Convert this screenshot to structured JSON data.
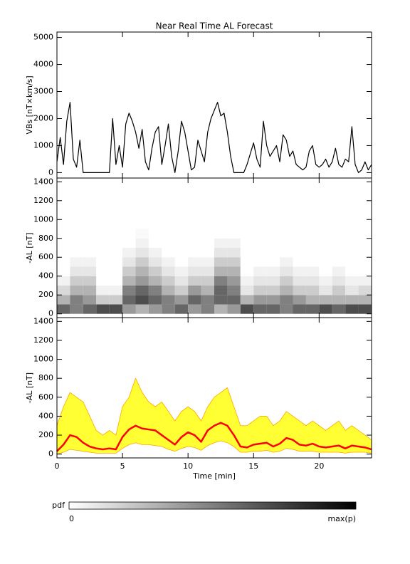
{
  "chart_data": [
    {
      "type": "line",
      "title": "Near Real Time AL Forecast",
      "ylabel": "VBs [nT×km/s]",
      "xlim": [
        0,
        24
      ],
      "xticks": [
        0,
        5,
        10,
        15,
        20
      ],
      "xtick_labels": false,
      "ylim": [
        -200,
        5200
      ],
      "yticks": [
        0,
        1000,
        2000,
        3000,
        4000,
        5000
      ],
      "x": [
        0,
        0.25,
        0.5,
        0.75,
        1,
        1.25,
        1.5,
        1.75,
        2,
        2.25,
        2.5,
        2.75,
        3,
        3.25,
        3.5,
        3.75,
        4,
        4.25,
        4.5,
        4.75,
        5,
        5.25,
        5.5,
        5.75,
        6,
        6.25,
        6.5,
        6.75,
        7,
        7.25,
        7.5,
        7.75,
        8,
        8.25,
        8.5,
        8.75,
        9,
        9.25,
        9.5,
        9.75,
        10,
        10.25,
        10.5,
        10.75,
        11,
        11.25,
        11.5,
        11.75,
        12,
        12.25,
        12.5,
        12.75,
        13,
        13.25,
        13.5,
        13.75,
        14,
        14.25,
        14.5,
        14.75,
        15,
        15.25,
        15.5,
        15.75,
        16,
        16.25,
        16.5,
        16.75,
        17,
        17.25,
        17.5,
        17.75,
        18,
        18.25,
        18.5,
        18.75,
        19,
        19.25,
        19.5,
        19.75,
        20,
        20.25,
        20.5,
        20.75,
        21,
        21.25,
        21.5,
        21.75,
        22,
        22.25,
        22.5,
        22.75,
        23,
        23.25,
        23.5,
        23.75,
        24
      ],
      "series": [
        {
          "color": "#000000",
          "values": [
            400,
            1300,
            300,
            1900,
            2600,
            500,
            200,
            1200,
            0,
            0,
            0,
            0,
            0,
            0,
            0,
            0,
            0,
            2000,
            300,
            1000,
            200,
            1800,
            2200,
            1900,
            1500,
            900,
            1600,
            400,
            100,
            900,
            1500,
            1700,
            300,
            1000,
            1800,
            600,
            0,
            800,
            1900,
            1500,
            800,
            100,
            200,
            1200,
            800,
            400,
            1500,
            2000,
            2300,
            2600,
            2100,
            2200,
            1500,
            600,
            0,
            0,
            0,
            0,
            300,
            700,
            1100,
            500,
            200,
            1900,
            1000,
            600,
            800,
            1000,
            400,
            1400,
            1200,
            600,
            800,
            300,
            200,
            100,
            200,
            800,
            1000,
            300,
            200,
            300,
            500,
            200,
            400,
            900,
            300,
            200,
            500,
            400,
            1700,
            300,
            0,
            100,
            400,
            100,
            300
          ]
        }
      ]
    },
    {
      "type": "heatmap",
      "ylabel": "-AL [nT]",
      "xlim": [
        0,
        24
      ],
      "xticks": [
        0,
        5,
        10,
        15,
        20
      ],
      "xtick_labels": false,
      "ylim": [
        -40,
        1440
      ],
      "yticks": [
        0,
        200,
        400,
        600,
        800,
        1000,
        1200,
        1400
      ],
      "xbins": [
        0,
        1,
        2,
        3,
        4,
        5,
        6,
        7,
        8,
        9,
        10,
        11,
        12,
        13,
        14,
        15,
        16,
        17,
        18,
        19,
        20,
        21,
        22,
        23,
        24
      ],
      "ybins": [
        0,
        100,
        200,
        300,
        400,
        500,
        600,
        700,
        800,
        900
      ],
      "values": [
        [
          0.6,
          0.3,
          0.15,
          0.05,
          0,
          0,
          0,
          0,
          0
        ],
        [
          0.5,
          0.5,
          0.3,
          0.2,
          0.1,
          0.05,
          0,
          0,
          0
        ],
        [
          0.6,
          0.4,
          0.3,
          0.2,
          0.1,
          0.05,
          0,
          0,
          0
        ],
        [
          0.7,
          0.2,
          0.05,
          0,
          0,
          0,
          0,
          0,
          0
        ],
        [
          0.7,
          0.2,
          0.05,
          0,
          0,
          0,
          0,
          0,
          0
        ],
        [
          0.4,
          0.6,
          0.5,
          0.3,
          0.2,
          0.1,
          0.05,
          0,
          0
        ],
        [
          0.3,
          0.7,
          0.6,
          0.4,
          0.3,
          0.2,
          0.1,
          0.05,
          0.02
        ],
        [
          0.4,
          0.6,
          0.5,
          0.3,
          0.2,
          0.1,
          0.05,
          0,
          0
        ],
        [
          0.5,
          0.5,
          0.3,
          0.2,
          0.1,
          0.05,
          0,
          0,
          0
        ],
        [
          0.6,
          0.4,
          0.2,
          0.1,
          0.05,
          0,
          0,
          0,
          0
        ],
        [
          0.4,
          0.6,
          0.4,
          0.2,
          0.1,
          0.05,
          0,
          0,
          0
        ],
        [
          0.5,
          0.5,
          0.3,
          0.2,
          0.1,
          0.05,
          0,
          0,
          0
        ],
        [
          0.3,
          0.6,
          0.6,
          0.5,
          0.3,
          0.2,
          0.1,
          0.05,
          0
        ],
        [
          0.4,
          0.6,
          0.5,
          0.4,
          0.3,
          0.2,
          0.1,
          0.05,
          0
        ],
        [
          0.7,
          0.3,
          0.1,
          0.05,
          0,
          0,
          0,
          0,
          0
        ],
        [
          0.6,
          0.4,
          0.2,
          0.1,
          0.05,
          0,
          0,
          0,
          0
        ],
        [
          0.6,
          0.4,
          0.2,
          0.1,
          0.05,
          0,
          0,
          0,
          0
        ],
        [
          0.5,
          0.5,
          0.3,
          0.2,
          0.1,
          0.05,
          0,
          0,
          0
        ],
        [
          0.6,
          0.4,
          0.2,
          0.1,
          0.05,
          0,
          0,
          0,
          0
        ],
        [
          0.6,
          0.3,
          0.2,
          0.1,
          0.05,
          0,
          0,
          0,
          0
        ],
        [
          0.7,
          0.3,
          0.1,
          0.05,
          0,
          0,
          0,
          0,
          0
        ],
        [
          0.6,
          0.3,
          0.2,
          0.1,
          0.05,
          0,
          0,
          0,
          0
        ],
        [
          0.7,
          0.3,
          0.1,
          0.05,
          0,
          0,
          0,
          0,
          0
        ],
        [
          0.7,
          0.3,
          0.15,
          0.05,
          0,
          0,
          0,
          0,
          0
        ]
      ],
      "colorbar": {
        "label": "pdf",
        "ticks": [
          0,
          {
            "value": 1,
            "label": "max(p)"
          }
        ]
      }
    },
    {
      "type": "line",
      "ylabel": "-AL [nT]",
      "xlabel": "Time [min]",
      "xlim": [
        0,
        24
      ],
      "xticks": [
        0,
        5,
        10,
        15,
        20
      ],
      "ylim": [
        -40,
        1440
      ],
      "yticks": [
        0,
        200,
        400,
        600,
        800,
        1000,
        1200,
        1400
      ],
      "x": [
        0,
        0.5,
        1,
        1.5,
        2,
        2.5,
        3,
        3.5,
        4,
        4.5,
        5,
        5.5,
        6,
        6.5,
        7,
        7.5,
        8,
        8.5,
        9,
        9.5,
        10,
        10.5,
        11,
        11.5,
        12,
        12.5,
        13,
        13.5,
        14,
        14.5,
        15,
        15.5,
        16,
        16.5,
        17,
        17.5,
        18,
        18.5,
        19,
        19.5,
        20,
        20.5,
        21,
        21.5,
        22,
        22.5,
        23,
        23.5,
        24
      ],
      "fill_between": {
        "series": [
          0,
          1
        ],
        "color": "#ffff33"
      },
      "series": [
        {
          "color": "#ffa500",
          "values": [
            300,
            500,
            650,
            600,
            550,
            400,
            250,
            200,
            250,
            200,
            500,
            600,
            800,
            650,
            550,
            500,
            550,
            450,
            350,
            450,
            500,
            450,
            350,
            500,
            600,
            650,
            700,
            500,
            300,
            300,
            350,
            400,
            400,
            300,
            350,
            450,
            400,
            350,
            300,
            350,
            300,
            250,
            300,
            350,
            250,
            300,
            250,
            200,
            150
          ]
        },
        {
          "color": "#ffa500",
          "values": [
            0,
            20,
            50,
            40,
            30,
            20,
            10,
            10,
            10,
            10,
            60,
            100,
            120,
            100,
            100,
            90,
            80,
            50,
            30,
            60,
            80,
            70,
            40,
            90,
            120,
            140,
            120,
            80,
            20,
            20,
            30,
            30,
            40,
            20,
            30,
            60,
            50,
            30,
            30,
            30,
            20,
            20,
            20,
            20,
            10,
            20,
            20,
            20,
            10
          ]
        },
        {
          "color": "#ff0000",
          "values": [
            30,
            100,
            200,
            180,
            120,
            80,
            60,
            50,
            60,
            50,
            180,
            260,
            300,
            270,
            260,
            250,
            200,
            150,
            100,
            180,
            230,
            200,
            130,
            250,
            300,
            330,
            300,
            200,
            80,
            70,
            100,
            110,
            120,
            80,
            110,
            170,
            150,
            100,
            90,
            110,
            80,
            70,
            80,
            90,
            60,
            90,
            80,
            70,
            50
          ]
        }
      ]
    }
  ]
}
